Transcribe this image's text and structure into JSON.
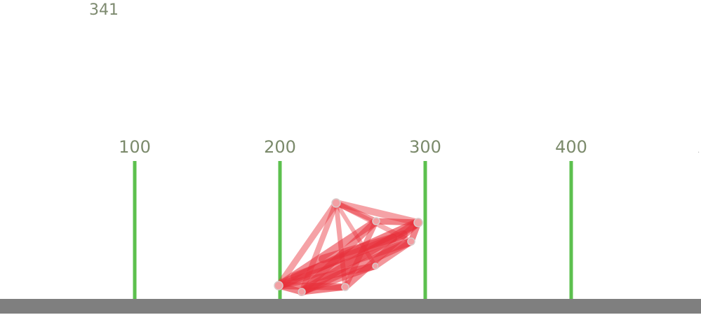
{
  "hud": {
    "score": "341"
  },
  "track": {
    "markers": [
      {
        "label": "100"
      },
      {
        "label": "200"
      },
      {
        "label": "300"
      },
      {
        "label": "400"
      }
    ]
  },
  "colors": {
    "marker_post": "#5cc04e",
    "marker_text": "#7b8a6b",
    "ground": "#7f7f7f",
    "creature_muscle": "#e8303a",
    "creature_node": "#f2a0a4"
  }
}
